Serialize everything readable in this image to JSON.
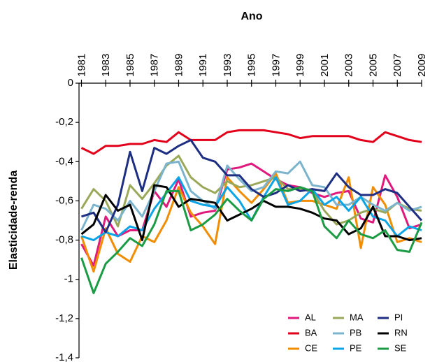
{
  "chart_data": {
    "type": "line",
    "x_label": "Ano",
    "y_label": "Elasticidade-renda",
    "x": [
      1981,
      1982,
      1983,
      1984,
      1985,
      1986,
      1987,
      1988,
      1989,
      1990,
      1991,
      1992,
      1993,
      1994,
      1995,
      1996,
      1997,
      1998,
      1999,
      2000,
      2001,
      2002,
      2003,
      2004,
      2005,
      2006,
      2007,
      2008,
      2009
    ],
    "xlim": [
      1980.8,
      2009
    ],
    "xticks": [
      1981,
      1983,
      1985,
      1987,
      1989,
      1991,
      1993,
      1995,
      1997,
      1999,
      2001,
      2003,
      2005,
      2007,
      2009
    ],
    "ylim": [
      -1.4,
      0
    ],
    "yticks": [
      0,
      {
        "value": -0.2,
        "label": "-0,2"
      },
      {
        "value": -0.4,
        "label": "-0,4"
      },
      {
        "value": -0.6,
        "label": "-0,6"
      },
      {
        "value": -0.8,
        "label": "-0,8"
      },
      {
        "value": -1,
        "label": "-1"
      },
      {
        "value": -1.2,
        "label": "-1,2"
      },
      {
        "value": -1.4,
        "label": "-1,4"
      }
    ],
    "legend": "bottom-right",
    "series": [
      {
        "name": "AL",
        "color": "#e0197d",
        "values": [
          -0.82,
          -0.93,
          -0.68,
          -0.78,
          -0.75,
          -0.75,
          -0.55,
          -0.63,
          -0.49,
          -0.68,
          -0.66,
          -0.65,
          -0.44,
          -0.43,
          -0.41,
          -0.45,
          -0.49,
          -0.52,
          -0.53,
          -0.56,
          -0.58,
          -0.56,
          -0.55,
          -0.69,
          -0.71,
          -0.47,
          -0.58,
          -0.74,
          -0.72
        ]
      },
      {
        "name": "BA",
        "color": "#e3001b",
        "values": [
          -0.33,
          -0.36,
          -0.32,
          -0.32,
          -0.31,
          -0.31,
          -0.29,
          -0.3,
          -0.25,
          -0.29,
          -0.29,
          -0.29,
          -0.25,
          -0.24,
          -0.24,
          -0.24,
          -0.25,
          -0.26,
          -0.28,
          -0.27,
          -0.27,
          -0.27,
          -0.27,
          -0.29,
          -0.3,
          -0.25,
          -0.27,
          -0.29,
          -0.3
        ]
      },
      {
        "name": "CE",
        "color": "#f28c00",
        "values": [
          -0.78,
          -0.96,
          -0.74,
          -0.87,
          -0.91,
          -0.78,
          -0.81,
          -0.7,
          -0.53,
          -0.66,
          -0.73,
          -0.82,
          -0.48,
          -0.55,
          -0.61,
          -0.54,
          -0.46,
          -0.61,
          -0.6,
          -0.6,
          -0.62,
          -0.64,
          -0.48,
          -0.84,
          -0.53,
          -0.62,
          -0.81,
          -0.79,
          -0.81
        ]
      },
      {
        "name": "MA",
        "color": "#9aa85a",
        "values": [
          -0.64,
          -0.54,
          -0.6,
          -0.73,
          -0.52,
          -0.59,
          -0.51,
          -0.42,
          -0.37,
          -0.48,
          -0.53,
          -0.56,
          -0.5,
          -0.53,
          -0.52,
          -0.5,
          -0.48,
          -0.54,
          -0.54,
          -0.55,
          -0.65,
          -0.72,
          -0.7,
          -0.66,
          -0.64,
          -0.66,
          -0.61,
          -0.64,
          -0.65
        ]
      },
      {
        "name": "PB",
        "color": "#7bb4cc",
        "values": [
          -0.75,
          -0.62,
          -0.64,
          -0.7,
          -0.6,
          -0.68,
          -0.55,
          -0.41,
          -0.4,
          -0.55,
          -0.6,
          -0.64,
          -0.42,
          -0.49,
          -0.55,
          -0.53,
          -0.45,
          -0.46,
          -0.4,
          -0.52,
          -0.53,
          -0.62,
          -0.62,
          -0.58,
          -0.62,
          -0.65,
          -0.61,
          -0.65,
          -0.63
        ]
      },
      {
        "name": "PE",
        "color": "#0ba4e6",
        "values": [
          -0.78,
          -0.8,
          -0.76,
          -0.78,
          -0.73,
          -0.75,
          -0.64,
          -0.56,
          -0.48,
          -0.6,
          -0.62,
          -0.63,
          -0.53,
          -0.6,
          -0.7,
          -0.58,
          -0.48,
          -0.62,
          -0.6,
          -0.54,
          -0.62,
          -0.58,
          -0.65,
          -0.58,
          -0.68,
          -0.7,
          -0.78,
          -0.73,
          -0.75
        ]
      },
      {
        "name": "PI",
        "color": "#1d2e83",
        "values": [
          -0.68,
          -0.66,
          -0.76,
          -0.62,
          -0.35,
          -0.55,
          -0.33,
          -0.36,
          -0.32,
          -0.29,
          -0.38,
          -0.4,
          -0.47,
          -0.47,
          -0.54,
          -0.58,
          -0.56,
          -0.52,
          -0.55,
          -0.54,
          -0.55,
          -0.46,
          -0.53,
          -0.57,
          -0.57,
          -0.54,
          -0.56,
          -0.63,
          -0.7
        ]
      },
      {
        "name": "RN",
        "color": "#000000",
        "values": [
          -0.77,
          -0.72,
          -0.57,
          -0.65,
          -0.62,
          -0.8,
          -0.52,
          -0.53,
          -0.63,
          -0.59,
          -0.6,
          -0.61,
          -0.7,
          -0.67,
          -0.64,
          -0.6,
          -0.63,
          -0.63,
          -0.64,
          -0.66,
          -0.69,
          -0.7,
          -0.77,
          -0.74,
          -0.63,
          -0.78,
          -0.78,
          -0.8,
          -0.79
        ]
      },
      {
        "name": "SE",
        "color": "#1a9b44",
        "values": [
          -0.89,
          -1.07,
          -0.92,
          -0.86,
          -0.79,
          -0.83,
          -0.72,
          -0.55,
          -0.55,
          -0.75,
          -0.72,
          -0.67,
          -0.59,
          -0.65,
          -0.7,
          -0.59,
          -0.54,
          -0.55,
          -0.53,
          -0.55,
          -0.73,
          -0.79,
          -0.7,
          -0.77,
          -0.79,
          -0.75,
          -0.85,
          -0.86,
          -0.71
        ]
      }
    ]
  }
}
